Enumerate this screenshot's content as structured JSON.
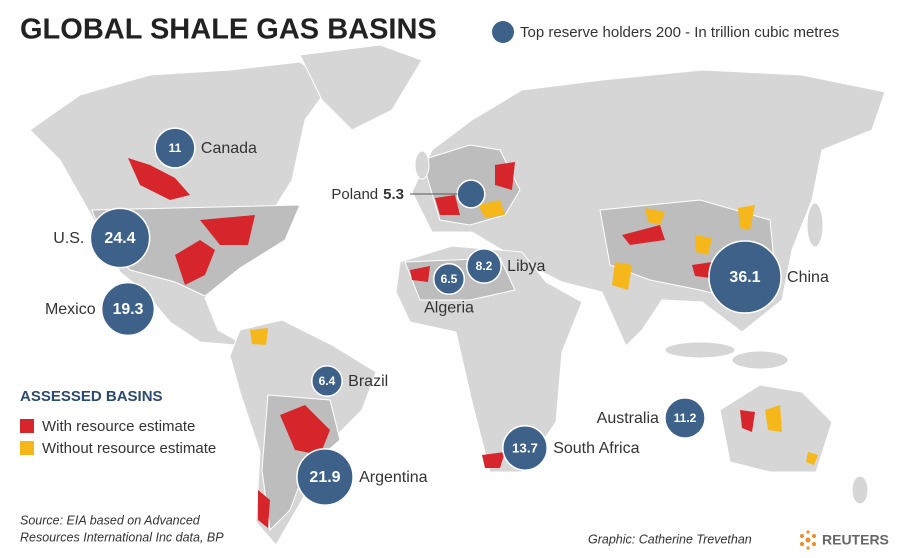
{
  "title": "GLOBAL SHALE GAS BASINS",
  "size_legend": "Top reserve holders 200 - In trillion cubic metres",
  "countries": [
    {
      "name": "Canada",
      "value": 11
    },
    {
      "name": "U.S.",
      "value": 24.4
    },
    {
      "name": "Mexico",
      "value": 19.3
    },
    {
      "name": "Brazil",
      "value": 6.4
    },
    {
      "name": "Argentina",
      "value": 21.9
    },
    {
      "name": "Poland",
      "value": 5.3
    },
    {
      "name": "Algeria",
      "value": 6.5
    },
    {
      "name": "Libya",
      "value": 8.2
    },
    {
      "name": "South Africa",
      "value": 13.7
    },
    {
      "name": "China",
      "value": 36.1
    },
    {
      "name": "Australia",
      "value": 11.2
    }
  ],
  "legend": {
    "title": "ASSESSED BASINS",
    "items": [
      "With resource estimate",
      "Without resource estimate"
    ]
  },
  "source": [
    "Source: EIA based on Advanced",
    "Resources International Inc data, BP"
  ],
  "credit": "Graphic: Catherine Trevethan",
  "logo": "REUTERS"
}
